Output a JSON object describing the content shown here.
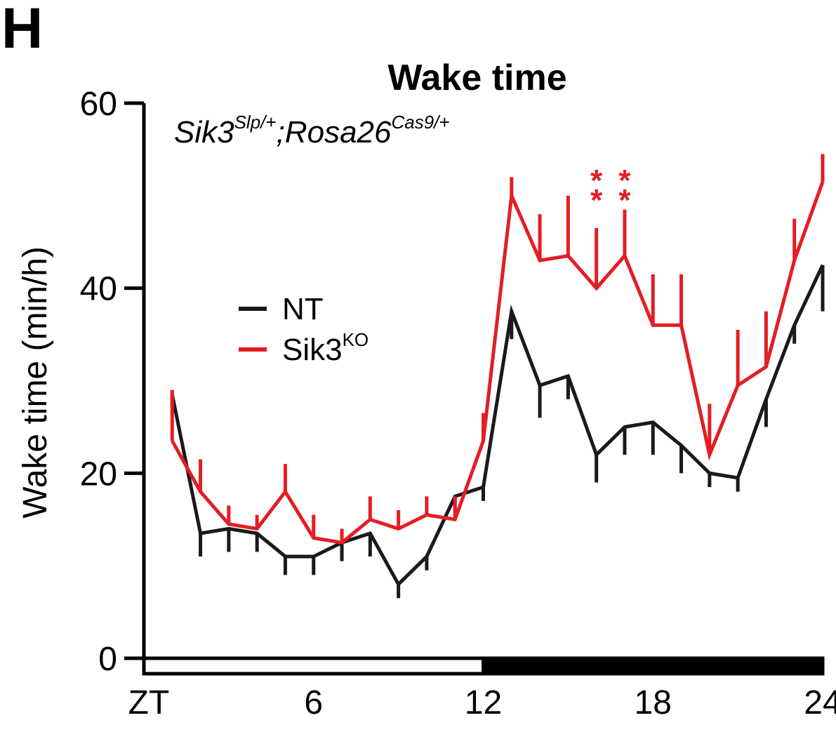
{
  "panel_label": "H",
  "chart_data": {
    "type": "line",
    "title": "Wake time",
    "subtitle": {
      "main": "Sik3",
      "sup1": "Slp/+",
      "mid": ";Rosa26",
      "sup2": "Cas9/+"
    },
    "ylabel": "Wake time (min/h)",
    "xlabel": "",
    "ylim": [
      0,
      60
    ],
    "xlim": [
      0,
      24
    ],
    "y_ticks": [
      0,
      20,
      40,
      60
    ],
    "x_tick_labels": [
      {
        "x": 0,
        "label": "ZT"
      },
      {
        "x": 6,
        "label": "6"
      },
      {
        "x": 12,
        "label": "12"
      },
      {
        "x": 18,
        "label": "18"
      },
      {
        "x": 24,
        "label": "24"
      }
    ],
    "light_dark_bar": {
      "light": [
        0,
        12
      ],
      "dark": [
        12,
        24
      ]
    },
    "legend": {
      "position": "center-left",
      "entries": [
        {
          "label": "NT",
          "color": "#1a1a1a"
        },
        {
          "label": "Sik3",
          "sup": "KO",
          "color": "#e31e24"
        }
      ]
    },
    "x": [
      1,
      2,
      3,
      4,
      5,
      6,
      7,
      8,
      9,
      10,
      11,
      12,
      13,
      14,
      15,
      16,
      17,
      18,
      19,
      20,
      21,
      22,
      23,
      24
    ],
    "series": [
      {
        "name": "NT",
        "color": "#1a1a1a",
        "error_direction": "down",
        "values": [
          28.5,
          13.5,
          14,
          13.5,
          11,
          11,
          12.5,
          13.5,
          8,
          11,
          17.5,
          18.5,
          37.5,
          29.5,
          30.5,
          22,
          25,
          25.5,
          23,
          20,
          19.5,
          28,
          36,
          42.5
        ],
        "errors": [
          1.5,
          2.5,
          2.5,
          2.0,
          2.0,
          2.0,
          2.0,
          2.5,
          1.5,
          1.5,
          1.5,
          1.5,
          3.0,
          3.5,
          2.5,
          3.0,
          3.0,
          3.5,
          3.0,
          1.5,
          1.5,
          3.0,
          2.0,
          5.0
        ]
      },
      {
        "name": "Sik3KO",
        "color": "#e31e24",
        "error_direction": "up",
        "values": [
          23.5,
          18,
          14.5,
          14,
          18,
          13,
          12.5,
          15,
          14,
          15.5,
          15,
          23.5,
          50,
          43,
          43.5,
          40,
          43.5,
          36,
          36,
          22,
          29.5,
          31.5,
          43,
          51.5
        ],
        "errors": [
          5.5,
          3.5,
          2.0,
          1.5,
          3.0,
          2.5,
          1.5,
          2.5,
          2.0,
          2.0,
          2.5,
          3.0,
          2.0,
          5.0,
          6.5,
          6.5,
          5.0,
          5.5,
          5.5,
          5.5,
          6.0,
          6.0,
          4.5,
          3.0
        ]
      }
    ],
    "annotations": [
      {
        "x": 16,
        "text": "**",
        "color": "#e31e24"
      },
      {
        "x": 17,
        "text": "**",
        "color": "#e31e24"
      }
    ]
  }
}
